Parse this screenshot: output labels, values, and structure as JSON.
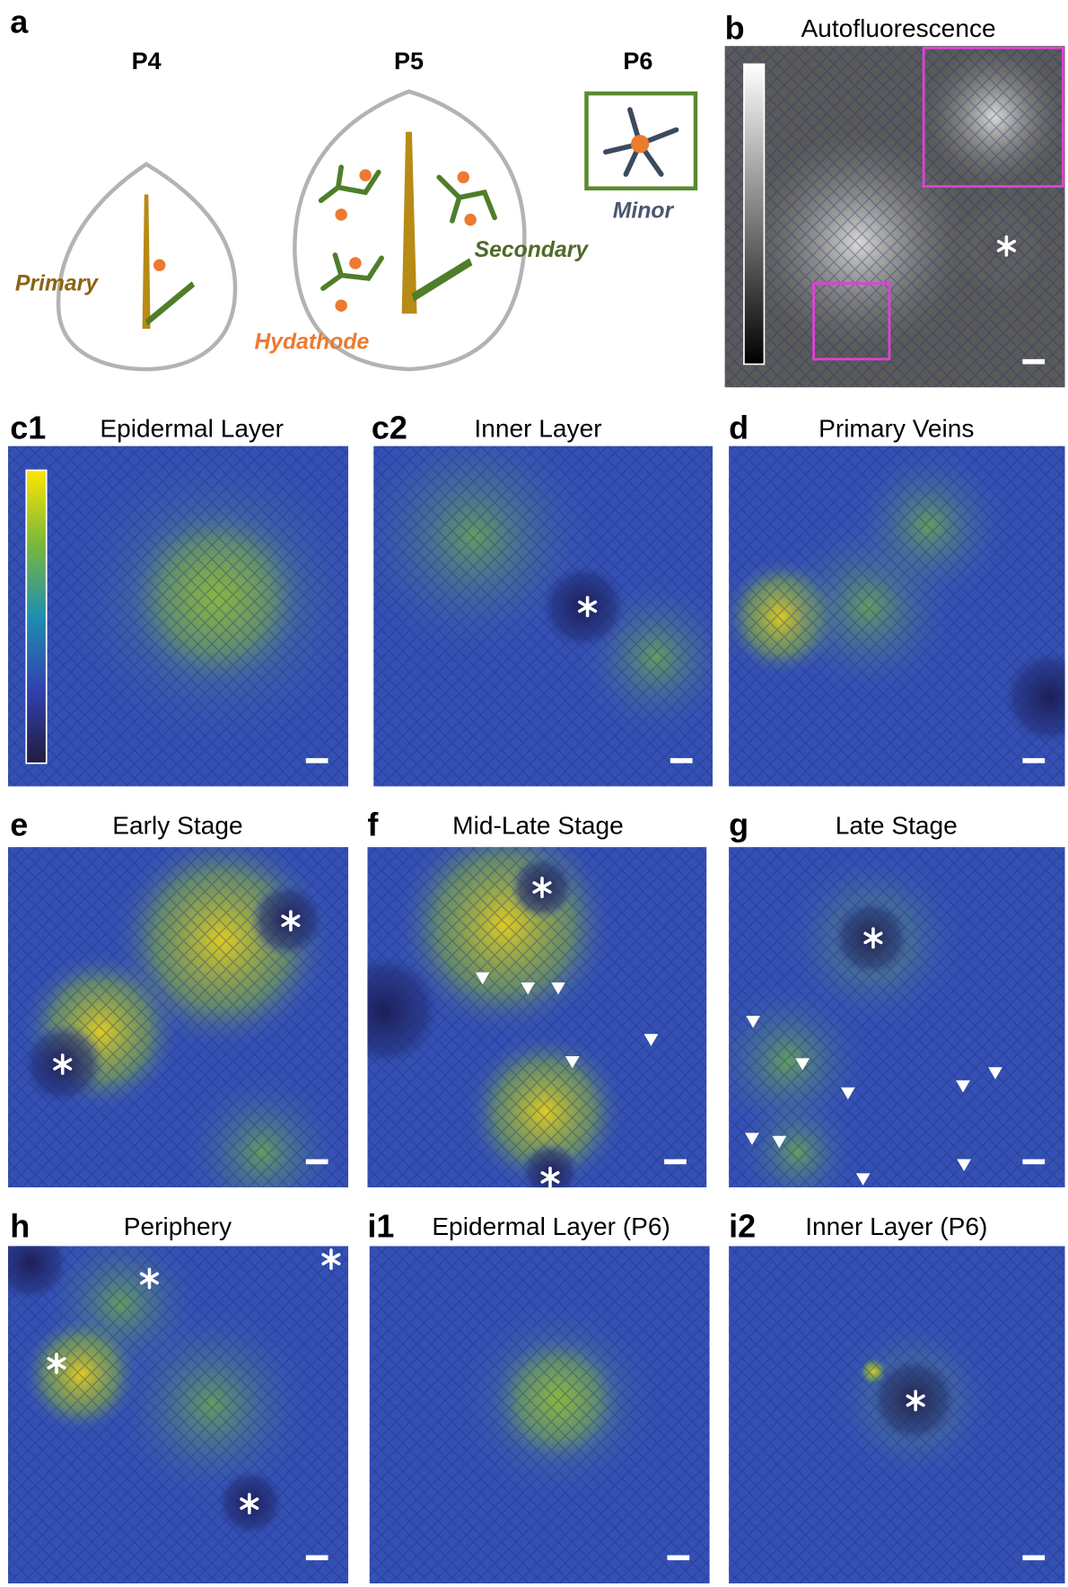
{
  "panel_a": {
    "label": "a",
    "stages": [
      "P4",
      "P5",
      "P6"
    ],
    "vein_labels": {
      "primary": "Primary",
      "secondary": "Secondary",
      "hydathode": "Hydathode",
      "minor": "Minor"
    }
  },
  "panels": [
    {
      "label": "b",
      "title": "Autofluorescence"
    },
    {
      "label": "c1",
      "title": "Epidermal Layer"
    },
    {
      "label": "c2",
      "title": "Inner Layer"
    },
    {
      "label": "d",
      "title": "Primary Veins"
    },
    {
      "label": "e",
      "title": "Early Stage"
    },
    {
      "label": "f",
      "title": "Mid-Late Stage"
    },
    {
      "label": "g",
      "title": "Late Stage"
    },
    {
      "label": "h",
      "title": "Periphery"
    },
    {
      "label": "i1",
      "title": "Epidermal Layer (P6)"
    },
    {
      "label": "i2",
      "title": "Inner Layer (P6)"
    }
  ]
}
